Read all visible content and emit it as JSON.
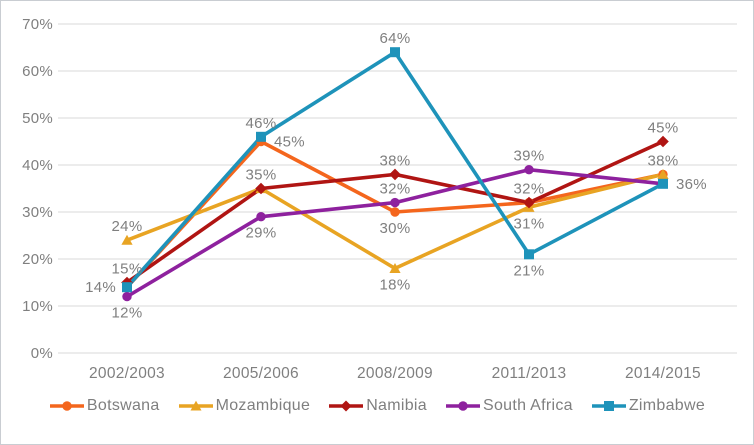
{
  "chart_data": {
    "type": "line",
    "categories": [
      "2002/2003",
      "2005/2006",
      "2008/2009",
      "2011/2013",
      "2014/2015"
    ],
    "series": [
      {
        "name": "Botswana",
        "color": "#f4661d",
        "marker": "circle",
        "values": [
          14,
          45,
          30,
          32,
          38
        ],
        "labels": [
          {
            "text": "",
            "pos": "none"
          },
          {
            "text": "45%",
            "pos": "right"
          },
          {
            "text": "30%",
            "pos": "below"
          },
          {
            "text": "",
            "pos": "none"
          },
          {
            "text": "38%",
            "pos": "above"
          }
        ]
      },
      {
        "name": "Mozambique",
        "color": "#e8a423",
        "marker": "triangle",
        "values": [
          24,
          35,
          18,
          31,
          38
        ],
        "labels": [
          {
            "text": "24%",
            "pos": "above"
          },
          {
            "text": "35%",
            "pos": "above"
          },
          {
            "text": "18%",
            "pos": "below"
          },
          {
            "text": "31%",
            "pos": "below"
          },
          {
            "text": "",
            "pos": "none"
          }
        ]
      },
      {
        "name": "Namibia",
        "color": "#b01513",
        "marker": "diamond",
        "values": [
          15,
          35,
          38,
          32,
          45
        ],
        "labels": [
          {
            "text": "15%",
            "pos": "above"
          },
          {
            "text": "",
            "pos": "none"
          },
          {
            "text": "38%",
            "pos": "above"
          },
          {
            "text": "32%",
            "pos": "above"
          },
          {
            "text": "45%",
            "pos": "above"
          }
        ]
      },
      {
        "name": "South Africa",
        "color": "#8e219e",
        "marker": "circle",
        "values": [
          12,
          29,
          32,
          39,
          36
        ],
        "labels": [
          {
            "text": "12%",
            "pos": "below"
          },
          {
            "text": "29%",
            "pos": "below"
          },
          {
            "text": "32%",
            "pos": "above"
          },
          {
            "text": "39%",
            "pos": "above"
          },
          {
            "text": "",
            "pos": "none"
          }
        ]
      },
      {
        "name": "Zimbabwe",
        "color": "#1e93ba",
        "marker": "square",
        "values": [
          14,
          46,
          64,
          21,
          36
        ],
        "labels": [
          {
            "text": "14%",
            "pos": "left"
          },
          {
            "text": "46%",
            "pos": "above"
          },
          {
            "text": "64%",
            "pos": "above"
          },
          {
            "text": "21%",
            "pos": "below"
          },
          {
            "text": "36%",
            "pos": "right"
          }
        ]
      }
    ],
    "ylim": [
      0,
      70
    ],
    "ytick_step": 10,
    "ytick_labels": [
      "0%",
      "10%",
      "20%",
      "30%",
      "40%",
      "50%",
      "60%",
      "70%"
    ],
    "grid": true,
    "legend_position": "bottom",
    "gridline_color": "#d9d9d9",
    "text_color": "#7f7f7f"
  }
}
